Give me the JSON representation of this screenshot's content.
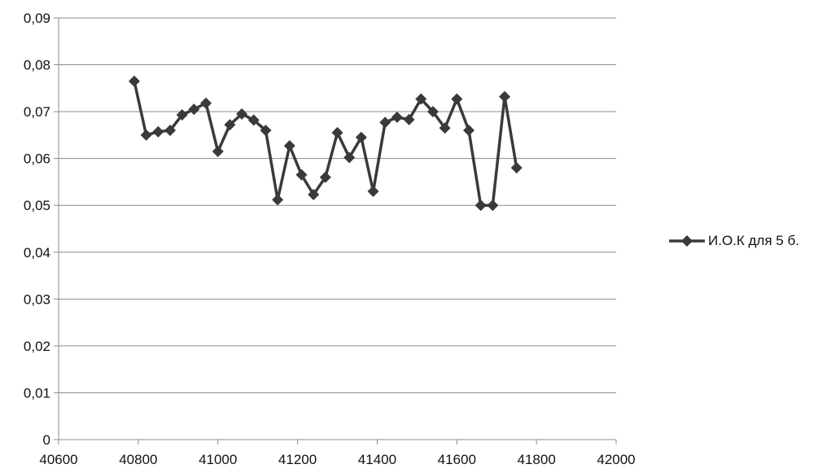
{
  "chart_data": {
    "type": "line",
    "title": "",
    "xlabel": "",
    "ylabel": "",
    "xlim": [
      40600,
      42000
    ],
    "ylim": [
      0,
      0.09
    ],
    "x_ticks": [
      "40600",
      "40800",
      "41000",
      "41200",
      "41400",
      "41600",
      "41800",
      "42000"
    ],
    "y_ticks": [
      "0",
      "0,01",
      "0,02",
      "0,03",
      "0,04",
      "0,05",
      "0,06",
      "0,07",
      "0,08",
      "0,09"
    ],
    "grid": "horizontal",
    "legend_position": "right",
    "series": [
      {
        "name": "И.О.К для 5 б.",
        "color": "#3a3a3a",
        "marker": "diamond",
        "x": [
          40790,
          40820,
          40850,
          40880,
          40910,
          40940,
          40970,
          41000,
          41030,
          41060,
          41090,
          41120,
          41150,
          41180,
          41210,
          41240,
          41270,
          41300,
          41330,
          41360,
          41390,
          41420,
          41450,
          41480,
          41510,
          41540,
          41570,
          41600,
          41630,
          41660,
          41690,
          41720,
          41750
        ],
        "y": [
          0.0765,
          0.065,
          0.0657,
          0.066,
          0.0693,
          0.0705,
          0.0718,
          0.0615,
          0.0672,
          0.0695,
          0.0682,
          0.066,
          0.0512,
          0.0627,
          0.0565,
          0.0523,
          0.056,
          0.0655,
          0.0602,
          0.0645,
          0.053,
          0.0677,
          0.0688,
          0.0683,
          0.0727,
          0.07,
          0.0665,
          0.0727,
          0.066,
          0.05,
          0.05,
          0.0732,
          0.058
        ]
      }
    ]
  }
}
